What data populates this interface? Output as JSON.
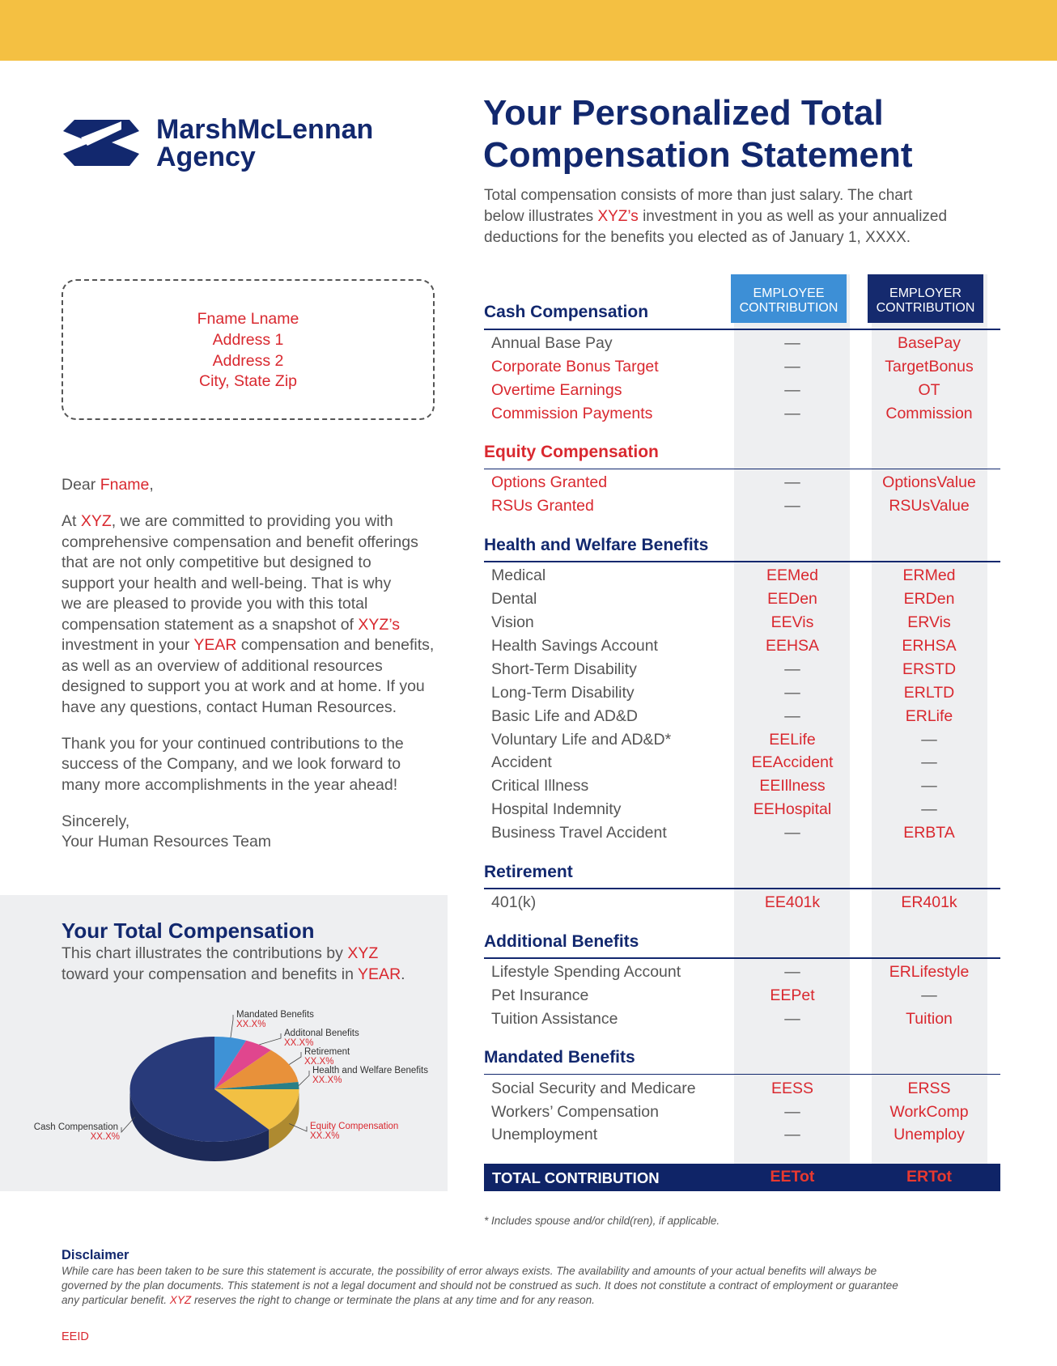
{
  "logo": {
    "line1": "MarshMcLennan",
    "line2": "Agency"
  },
  "header": {
    "title": [
      "Your Personalized Total",
      "Compensation Statement"
    ],
    "intro": [
      [
        {
          "text": "Total compensation consists of more than just salary. The chart"
        }
      ],
      [
        {
          "text": "below illustrates "
        },
        {
          "text": "XYZ’s",
          "red": true
        },
        {
          "text": " investment in you as well as your annualized"
        }
      ],
      [
        {
          "text": "deductions for the benefits you elected as of January 1, XXXX."
        }
      ]
    ]
  },
  "address": [
    "Fname Lname",
    "Address 1",
    "Address 2",
    "City, State Zip"
  ],
  "letter": {
    "paragraphs": [
      [
        [
          {
            "text": "Dear "
          },
          {
            "text": "Fname",
            "red": true
          },
          {
            "text": ","
          }
        ]
      ],
      [
        [
          {
            "text": "At "
          },
          {
            "text": "XYZ",
            "red": true
          },
          {
            "text": ", we are committed to providing you with"
          }
        ],
        [
          {
            "text": "comprehensive compensation and benefit offerings"
          }
        ],
        [
          {
            "text": "that are not only competitive but designed to"
          }
        ],
        [
          {
            "text": "support your health and well-being. That is why"
          }
        ],
        [
          {
            "text": "we are pleased to provide you with this total"
          }
        ],
        [
          {
            "text": "compensation statement as a snapshot of "
          },
          {
            "text": "XYZ’s",
            "red": true
          }
        ],
        [
          {
            "text": "investment in your "
          },
          {
            "text": "YEAR",
            "red": true
          },
          {
            "text": " compensation and benefits,"
          }
        ],
        [
          {
            "text": "as well as an overview of additional resources"
          }
        ],
        [
          {
            "text": "designed to support you at work and at home. If you"
          }
        ],
        [
          {
            "text": "have any questions, contact Human Resources."
          }
        ]
      ],
      [
        [
          {
            "text": "Thank you for your continued contributions to the"
          }
        ],
        [
          {
            "text": "success of the Company, and we look forward to"
          }
        ],
        [
          {
            "text": "many more accomplishments in the year ahead!"
          }
        ]
      ],
      [
        [
          {
            "text": "Sincerely,"
          }
        ],
        [
          {
            "text": "Your Human Resources Team"
          }
        ]
      ]
    ]
  },
  "total_comp": {
    "title": "Your Total Compensation",
    "subtitle": [
      [
        {
          "text": "This chart illustrates the contributions by "
        },
        {
          "text": "XYZ",
          "red": true
        }
      ],
      [
        {
          "text": "toward your compensation and benefits in "
        },
        {
          "text": "YEAR",
          "red": true
        },
        {
          "text": "."
        }
      ]
    ],
    "slices": [
      {
        "name": "Mandated Benefits",
        "label": "XX.X%",
        "color": "#3e92d6"
      },
      {
        "name": "Additonal Benefits",
        "label": "XX.X%",
        "color": "#e0468e"
      },
      {
        "name": "Retirement",
        "label": "XX.X%",
        "color": "#e8913a"
      },
      {
        "name": "Health and Welfare Benefits",
        "label": "XX.X%",
        "color": "#2a7f86"
      },
      {
        "name": "Equity Compensation",
        "label": "XX.X%",
        "color": "#f2c043",
        "red": true
      },
      {
        "name": "Cash Compensation",
        "label": "XX.X%",
        "color": "#283a7a"
      }
    ]
  },
  "table": {
    "employee_header": [
      "EMPLOYEE",
      "CONTRIBUTION"
    ],
    "employer_header": [
      "EMPLOYER",
      "CONTRIBUTION"
    ],
    "sections": [
      {
        "heading": "Cash Compensation",
        "rows": [
          {
            "label": "Annual Base Pay",
            "ee": "—",
            "er": "BasePay"
          },
          {
            "label": "Corporate Bonus Target",
            "ee": "—",
            "er": "TargetBonus",
            "red": true
          },
          {
            "label": "Overtime Earnings",
            "ee": "—",
            "er": "OT",
            "red": true
          },
          {
            "label": "Commission Payments",
            "ee": "—",
            "er": "Commission",
            "red": true
          }
        ]
      },
      {
        "heading": "Equity Compensation",
        "red": true,
        "rows": [
          {
            "label": "Options Granted",
            "ee": "—",
            "er": "OptionsValue",
            "red": true
          },
          {
            "label": "RSUs Granted",
            "ee": "—",
            "er": "RSUsValue",
            "red": true
          }
        ]
      },
      {
        "heading": "Health and Welfare Benefits",
        "rows": [
          {
            "label": "Medical",
            "ee": "EEMed",
            "er": "ERMed"
          },
          {
            "label": "Dental",
            "ee": "EEDen",
            "er": "ERDen"
          },
          {
            "label": "Vision",
            "ee": "EEVis",
            "er": "ERVis"
          },
          {
            "label": "Health Savings Account",
            "ee": "EEHSA",
            "er": "ERHSA"
          },
          {
            "label": "Short-Term Disability",
            "ee": "—",
            "er": "ERSTD"
          },
          {
            "label": "Long-Term Disability",
            "ee": "—",
            "er": "ERLTD"
          },
          {
            "label": "Basic Life and AD&D",
            "ee": "—",
            "er": "ERLife"
          },
          {
            "label": "Voluntary Life and AD&D*",
            "ee": "EELife",
            "er": "—"
          },
          {
            "label": "Accident",
            "ee": "EEAccident",
            "er": "—"
          },
          {
            "label": "Critical Illness",
            "ee": "EEIllness",
            "er": "—"
          },
          {
            "label": "Hospital Indemnity",
            "ee": "EEHospital",
            "er": "—"
          },
          {
            "label": "Business Travel Accident",
            "ee": "—",
            "er": "ERBTA"
          }
        ]
      },
      {
        "heading": "Retirement",
        "rows": [
          {
            "label": "401(k)",
            "ee": "EE401k",
            "er": "ER401k"
          }
        ]
      },
      {
        "heading": "Additional Benefits",
        "rows": [
          {
            "label": "Lifestyle Spending Account",
            "ee": "—",
            "er": "ERLifestyle"
          },
          {
            "label": "Pet Insurance",
            "ee": "EEPet",
            "er": "—"
          },
          {
            "label": "Tuition Assistance",
            "ee": "—",
            "er": "Tuition"
          }
        ]
      },
      {
        "heading": "Mandated Benefits",
        "rows": [
          {
            "label": "Social Security and Medicare",
            "ee": "EESS",
            "er": "ERSS"
          },
          {
            "label": "Workers’ Compensation",
            "ee": "—",
            "er": "WorkComp"
          },
          {
            "label": "Unemployment",
            "ee": "—",
            "er": "Unemploy"
          }
        ]
      }
    ],
    "total": {
      "label": "TOTAL CONTRIBUTION",
      "ee": "EETot",
      "er": "ERTot"
    }
  },
  "footnote": "* Includes spouse and/or child(ren), if applicable.",
  "disclaimer": {
    "title": "Disclaimer",
    "lines": [
      [
        {
          "text": "While care has been taken to be sure this statement is accurate, the possibility of error always exists. The availability and amounts of your actual benefits will always be"
        }
      ],
      [
        {
          "text": "governed by the plan documents. This statement is not a legal document and should not be construed as such. It does not constitute a contract of employment or guarantee"
        }
      ],
      [
        {
          "text": "any particular benefit. "
        },
        {
          "text": "XYZ",
          "red": true
        },
        {
          "text": " reserves the right to change or terminate the plans at any time and for any reason."
        }
      ]
    ]
  },
  "eeid": "EEID"
}
